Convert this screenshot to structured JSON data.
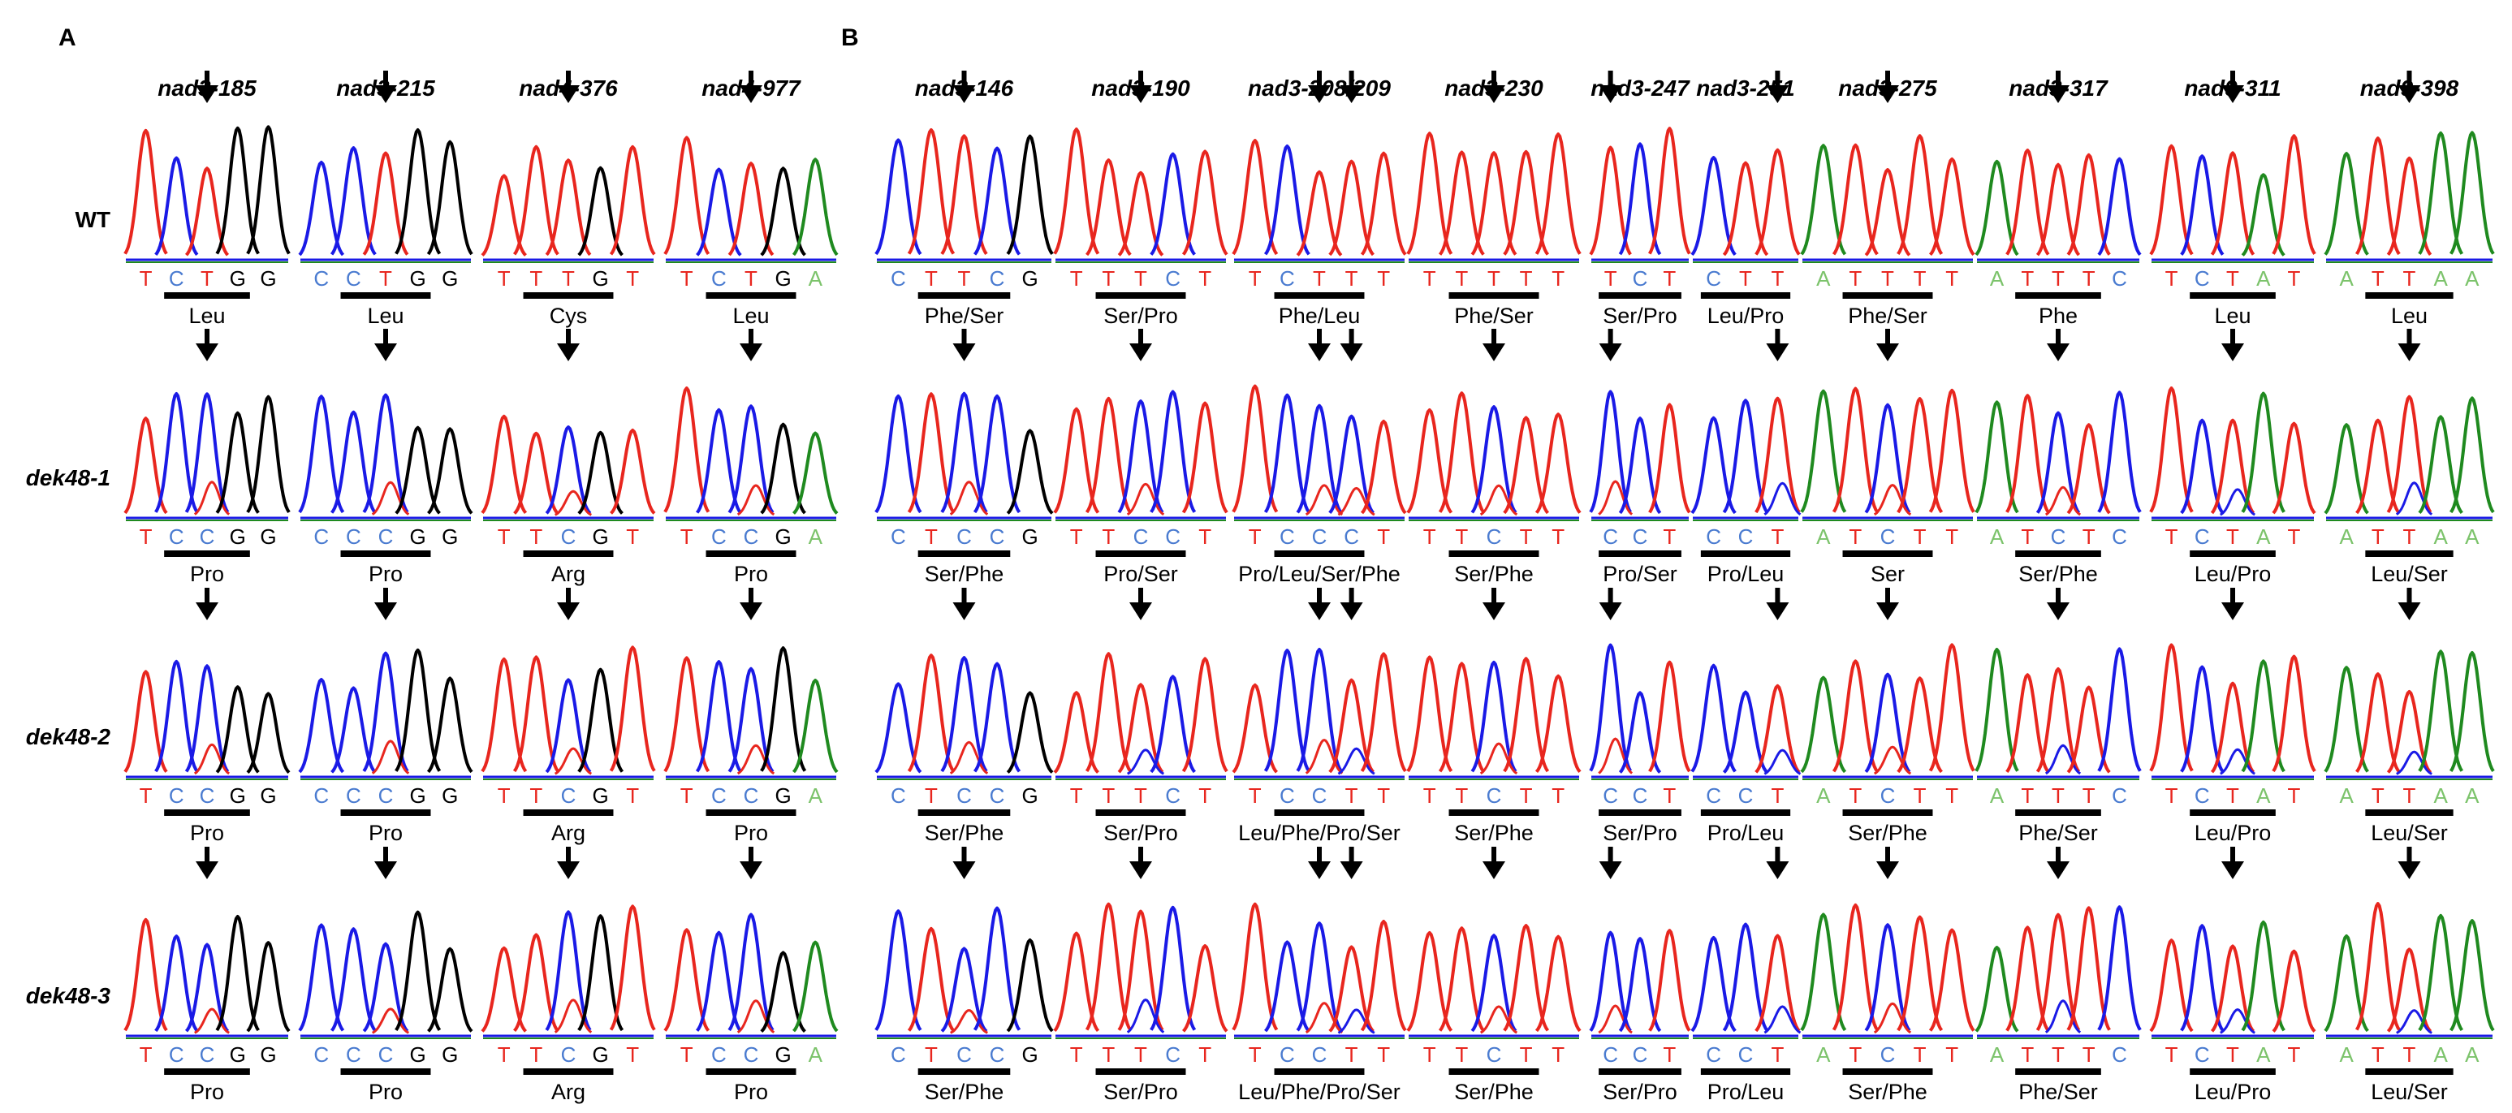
{
  "panels": [
    "A",
    "B"
  ],
  "row_labels": [
    "WT",
    "dek48-1",
    "dek48-2",
    "dek48-3"
  ],
  "colors": {
    "A": "#1f8a1f",
    "C": "#1a1ae6",
    "G": "#000000",
    "T": "#e8261e",
    "C_letter": "#4a7bd0",
    "A_letter": "#7cc36b",
    "G_letter": "#000000",
    "T_letter": "#e8261e"
  },
  "sites": [
    {
      "name": "nad3-185",
      "panel": "A",
      "marks": [
        2
      ],
      "seqs": [
        "TCTGG",
        "TCCGG",
        "TCCGG",
        "TCCGG"
      ],
      "aa": [
        "Leu",
        "Pro",
        "Pro",
        "Pro"
      ]
    },
    {
      "name": "nad3-215",
      "panel": "A",
      "marks": [
        2
      ],
      "seqs": [
        "CCTGG",
        "CCCGG",
        "CCCGG",
        "CCCGG"
      ],
      "aa": [
        "Leu",
        "Pro",
        "Pro",
        "Pro"
      ]
    },
    {
      "name": "nad4-376",
      "panel": "A",
      "marks": [
        2
      ],
      "seqs": [
        "TTTGT",
        "TTCGT",
        "TTCGT",
        "TTCGT"
      ],
      "aa": [
        "Cys",
        "Arg",
        "Arg",
        "Arg"
      ]
    },
    {
      "name": "nad4-977",
      "panel": "A",
      "marks": [
        2
      ],
      "seqs": [
        "TCTGA",
        "TCCGA",
        "TCCGA",
        "TCCGA"
      ],
      "aa": [
        "Leu",
        "Pro",
        "Pro",
        "Pro"
      ]
    },
    {
      "name": "nad3-146",
      "panel": "B",
      "marks": [
        2
      ],
      "seqs": [
        "CTTCG",
        "CTCCG",
        "CTCCG",
        "CTCCG"
      ],
      "aa": [
        "Phe/Ser",
        "Ser/Phe",
        "Ser/Phe",
        "Ser/Phe"
      ]
    },
    {
      "name": "nad3-190",
      "panel": "B",
      "marks": [
        2
      ],
      "seqs": [
        "TTTCT",
        "TTCCT",
        "TTTCT",
        "TTTCT"
      ],
      "aa": [
        "Ser/Pro",
        "Pro/Ser",
        "Ser/Pro",
        "Ser/Pro"
      ]
    },
    {
      "name": "nad3-208/209",
      "panel": "B",
      "marks": [
        2,
        3
      ],
      "seqs": [
        "TCTTT",
        "TCCCT",
        "TCCTT",
        "TCCTT"
      ],
      "aa": [
        "Phe/Leu",
        "Pro/Leu/Ser/Phe",
        "Leu/Phe/Pro/Ser",
        "Leu/Phe/Pro/Ser"
      ]
    },
    {
      "name": "nad3-230",
      "panel": "B",
      "marks": [
        2
      ],
      "seqs": [
        "TTTTT",
        "TTCTT",
        "TTCTT",
        "TTCTT"
      ],
      "aa": [
        "Phe/Ser",
        "Ser/Phe",
        "Ser/Phe",
        "Ser/Phe"
      ]
    },
    {
      "name": "nad3-247",
      "panel": "B",
      "marks": [
        0
      ],
      "seqs": [
        "TCT",
        "CCT",
        "CCT",
        "CCT"
      ],
      "aa": [
        "Ser/Pro",
        "Pro/Ser",
        "Ser/Pro",
        "Ser/Pro"
      ]
    },
    {
      "name": "nad3-251",
      "panel": "B",
      "marks": [
        2
      ],
      "seqs": [
        "CTT",
        "CCT",
        "CCT",
        "CCT"
      ],
      "aa": [
        "Leu/Pro",
        "Pro/Leu",
        "Pro/Leu",
        "Pro/Leu"
      ]
    },
    {
      "name": "nad3-275",
      "panel": "B",
      "marks": [
        2
      ],
      "seqs": [
        "ATTTT",
        "ATCTT",
        "ATCTT",
        "ATCTT"
      ],
      "aa": [
        "Phe/Ser",
        "Ser",
        "Ser/Phe",
        "Ser/Phe"
      ]
    },
    {
      "name": "nad3-317",
      "panel": "B",
      "marks": [
        2
      ],
      "seqs": [
        "ATTTC",
        "ATCTC",
        "ATTTC",
        "ATTTC"
      ],
      "aa": [
        "Phe",
        "Ser/Phe",
        "Phe/Ser",
        "Phe/Ser"
      ]
    },
    {
      "name": "nad9-311",
      "panel": "B",
      "marks": [
        2
      ],
      "seqs": [
        "TCTAT",
        "TCTAT",
        "TCTAT",
        "TCTAT"
      ],
      "aa": [
        "Leu",
        "Leu/Pro",
        "Leu/Pro",
        "Leu/Pro"
      ]
    },
    {
      "name": "nad9-398",
      "panel": "B",
      "marks": [
        2
      ],
      "seqs": [
        "ATTAA",
        "ATTAA",
        "ATTAA",
        "ATTAA"
      ],
      "aa": [
        "Leu",
        "Leu/Ser",
        "Leu/Ser",
        "Leu/Ser"
      ]
    }
  ]
}
